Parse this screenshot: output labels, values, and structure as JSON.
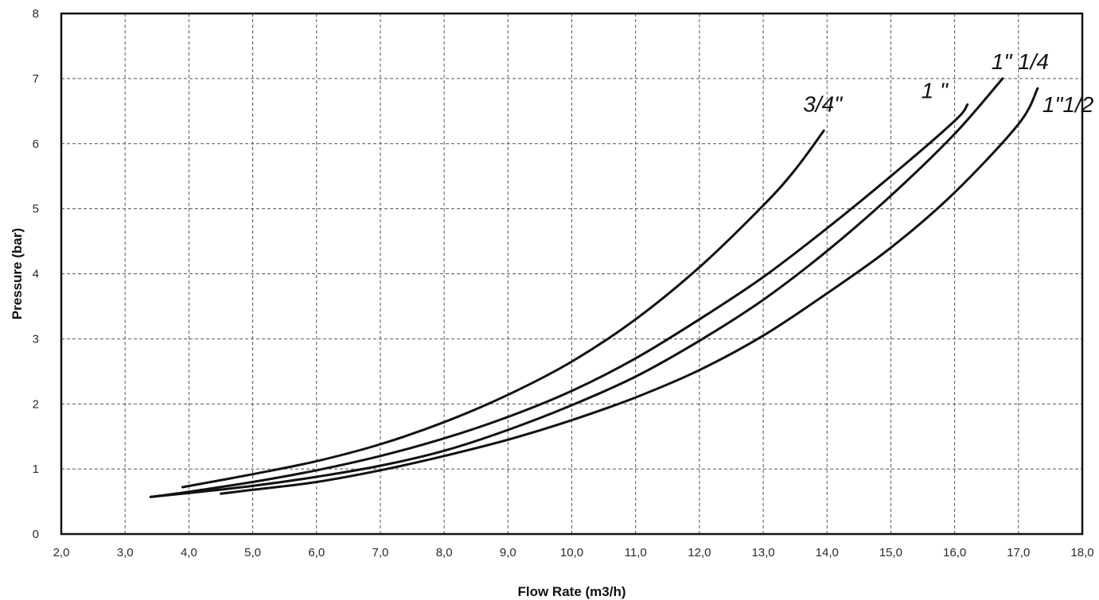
{
  "chart_data": {
    "type": "line",
    "xlabel": "Flow Rate (m3/h)",
    "ylabel": "Pressure (bar)",
    "xlim": [
      2.0,
      18.0
    ],
    "ylim": [
      0,
      8
    ],
    "x_ticks": [
      "2,0",
      "3,0",
      "4,0",
      "5,0",
      "6,0",
      "7,0",
      "8,0",
      "9,0",
      "10,0",
      "11,0",
      "12,0",
      "13,0",
      "14,0",
      "15,0",
      "16,0",
      "17,0",
      "18,0"
    ],
    "y_ticks": [
      "0",
      "1",
      "2",
      "3",
      "4",
      "5",
      "6",
      "7",
      "8"
    ],
    "grid": true,
    "series": [
      {
        "name": "3/4\"",
        "points": [
          [
            3.9,
            0.72
          ],
          [
            5.0,
            0.92
          ],
          [
            6.0,
            1.12
          ],
          [
            7.0,
            1.38
          ],
          [
            8.0,
            1.72
          ],
          [
            9.0,
            2.14
          ],
          [
            10.0,
            2.65
          ],
          [
            11.0,
            3.3
          ],
          [
            12.0,
            4.1
          ],
          [
            13.0,
            5.05
          ],
          [
            13.5,
            5.6
          ],
          [
            13.95,
            6.2
          ]
        ]
      },
      {
        "name": "1 \"",
        "points": [
          [
            3.4,
            0.57
          ],
          [
            4.0,
            0.65
          ],
          [
            5.0,
            0.8
          ],
          [
            6.0,
            0.98
          ],
          [
            7.0,
            1.2
          ],
          [
            8.0,
            1.47
          ],
          [
            9.0,
            1.8
          ],
          [
            10.0,
            2.2
          ],
          [
            11.0,
            2.7
          ],
          [
            12.0,
            3.3
          ],
          [
            13.0,
            3.95
          ],
          [
            14.0,
            4.7
          ],
          [
            15.0,
            5.5
          ],
          [
            16.0,
            6.35
          ],
          [
            16.2,
            6.6
          ]
        ]
      },
      {
        "name": "1\" 1/4",
        "points": [
          [
            3.4,
            0.57
          ],
          [
            4.0,
            0.63
          ],
          [
            5.0,
            0.74
          ],
          [
            6.0,
            0.88
          ],
          [
            7.0,
            1.05
          ],
          [
            8.0,
            1.28
          ],
          [
            9.0,
            1.6
          ],
          [
            10.0,
            1.98
          ],
          [
            11.0,
            2.42
          ],
          [
            12.0,
            2.97
          ],
          [
            13.0,
            3.6
          ],
          [
            14.0,
            4.35
          ],
          [
            15.0,
            5.2
          ],
          [
            16.0,
            6.15
          ],
          [
            16.75,
            7.0
          ]
        ]
      },
      {
        "name": "1\"1/2",
        "points": [
          [
            4.5,
            0.62
          ],
          [
            5.0,
            0.68
          ],
          [
            6.0,
            0.8
          ],
          [
            7.0,
            0.98
          ],
          [
            8.0,
            1.2
          ],
          [
            9.0,
            1.45
          ],
          [
            10.0,
            1.75
          ],
          [
            11.0,
            2.1
          ],
          [
            12.0,
            2.52
          ],
          [
            13.0,
            3.05
          ],
          [
            14.0,
            3.7
          ],
          [
            15.0,
            4.4
          ],
          [
            16.0,
            5.25
          ],
          [
            17.0,
            6.3
          ],
          [
            17.3,
            6.85
          ]
        ]
      }
    ]
  }
}
